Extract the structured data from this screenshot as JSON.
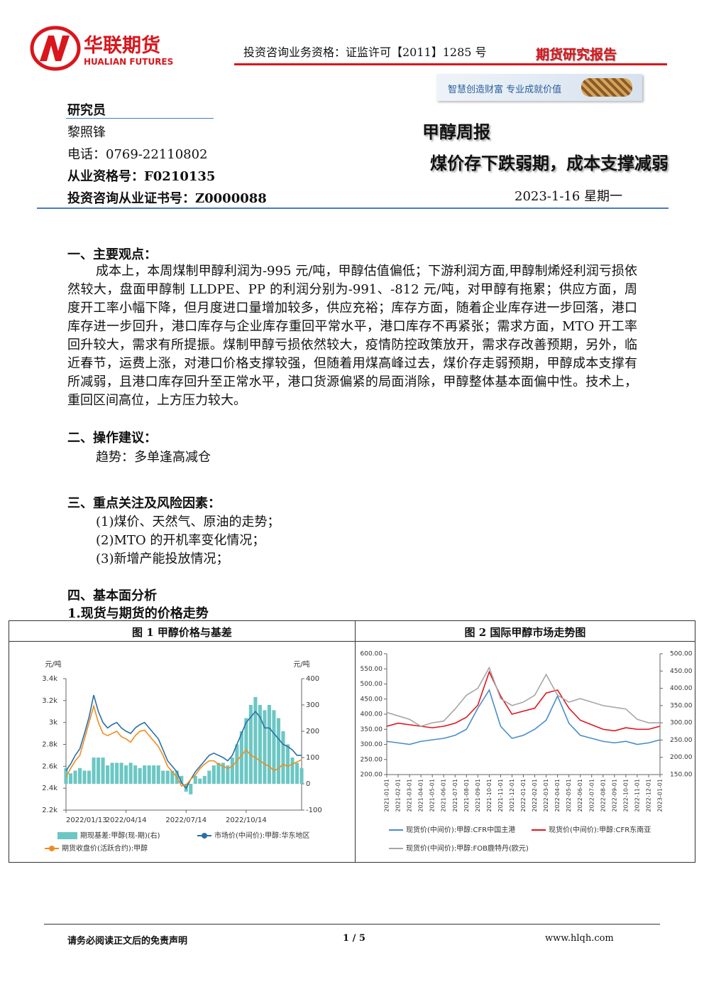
{
  "header": {
    "logo_cn": "华联期货",
    "logo_en": "HUALIAN FUTURES",
    "qualification": "投资咨询业务资格：证监许可【2011】1285 号",
    "report_type": "期货研究报告",
    "slogan": "智慧创造财富 专业成就价值"
  },
  "researcher": {
    "heading": "研究员",
    "name": "黎照锋",
    "phone": "电话：0769-22110802",
    "license": "从业资格号：F0210135",
    "consult_license": "投资咨询从业证书号：Z0000088"
  },
  "report": {
    "title": "甲醇周报",
    "subtitle": "煤价存下跌弱期，成本支撑减弱",
    "date": "2023-1-16 星期一"
  },
  "sections": [
    {
      "heading": "一、主要观点：",
      "paragraph": "成本上，本周煤制甲醇利润为-995 元/吨，甲醇估值偏低；下游利润方面,甲醇制烯烃利润亏损依然较大，盘面甲醇制 LLDPE、PP 的利润分别为-991、-812 元/吨，对甲醇有拖累；供应方面，周度开工率小幅下降，但月度进口量增加较多，供应充裕；库存方面，随着企业库存进一步回落，港口库存进一步回升，港口库存与企业库存重回平常水平，港口库存不再紧张；需求方面，MTO 开工率回升较大，需求有所提振。煤制甲醇亏损依然较大，疫情防控政策放开，需求存改善预期，另外，临近春节，运费上涨，对港口价格支撑较强，但随着用煤高峰过去，煤价存走弱预期，甲醇成本支撑有所减弱，且港口库存回升至正常水平，港口货源偏紧的局面消除，甲醇整体基本面偏中性。技术上，重回区间高位，上方压力较大。"
    },
    {
      "heading": "二、操作建议：",
      "items": [
        "趋势：多单逢高减仓"
      ]
    },
    {
      "heading": "三、重点关注及风险因素：",
      "items": [
        "(1)煤价、天然气、原油的走势；",
        "(2)MTO 的开机率变化情况；",
        "(3)新增产能投放情况；"
      ]
    },
    {
      "heading": "四、基本面分析",
      "subheading": "1.现货与期货的价格走势"
    }
  ],
  "chart_data": [
    {
      "type": "combo",
      "title": "图 1 甲醇价格与基差",
      "y_label": "元/吨",
      "y2_label": "元/吨",
      "categories": [
        "2022/01/13",
        null,
        null,
        null,
        null,
        null,
        null,
        null,
        null,
        null,
        null,
        null,
        null,
        "2022/04/14",
        null,
        null,
        null,
        null,
        null,
        null,
        null,
        null,
        null,
        null,
        null,
        null,
        "2022/07/14",
        null,
        null,
        null,
        null,
        null,
        null,
        null,
        null,
        null,
        null,
        null,
        null,
        "2022/10/14",
        null,
        null,
        null,
        null,
        null,
        null,
        null,
        null,
        null,
        null,
        null,
        null
      ],
      "ylim": [
        2200,
        3400
      ],
      "yticks": [
        {
          "value": 2200,
          "label": "2.2k"
        },
        {
          "value": 2400,
          "label": "2.4k"
        },
        {
          "value": 2600,
          "label": "2.6k"
        },
        {
          "value": 2800,
          "label": "2.8k"
        },
        {
          "value": 3000,
          "label": "3k"
        },
        {
          "value": 3200,
          "label": "3.2k"
        },
        {
          "value": 3400,
          "label": "3.4k"
        }
      ],
      "y2lim": [
        -100,
        400
      ],
      "y2ticks": [
        -100,
        0,
        100,
        200,
        300,
        400
      ],
      "grid": false,
      "series": [
        {
          "name": "期现基差:甲醇(现-期)(右)",
          "type": "bar",
          "axis": "y2",
          "color": "#6cc7c4",
          "values": [
            60,
            40,
            50,
            60,
            50,
            50,
            100,
            100,
            100,
            70,
            80,
            80,
            80,
            70,
            80,
            70,
            60,
            70,
            70,
            70,
            70,
            50,
            50,
            50,
            50,
            30,
            -30,
            -40,
            30,
            20,
            30,
            50,
            70,
            80,
            80,
            70,
            100,
            150,
            200,
            250,
            300,
            330,
            300,
            280,
            300,
            280,
            250,
            200,
            150,
            100,
            80,
            60
          ]
        },
        {
          "name": "市场价(中间价):甲醇:华东地区",
          "type": "line",
          "color": "#2a6fa8",
          "values": [
            2560,
            2620,
            2700,
            2760,
            2900,
            3050,
            3250,
            3100,
            3000,
            2950,
            2980,
            3000,
            2950,
            2920,
            2900,
            2950,
            2980,
            3000,
            2950,
            2900,
            2850,
            2750,
            2650,
            2600,
            2550,
            2450,
            2400,
            2480,
            2550,
            2600,
            2650,
            2700,
            2720,
            2700,
            2680,
            2650,
            2700,
            2800,
            2900,
            3000,
            3050,
            3100,
            3050,
            2950,
            2950,
            2900,
            2850,
            2800,
            2780,
            2750,
            2700,
            2700
          ]
        },
        {
          "name": "期货收盘价(活跃合约):甲醇",
          "type": "line",
          "color": "#f08c1e",
          "values": [
            2500,
            2580,
            2650,
            2700,
            2850,
            3000,
            3150,
            3000,
            2900,
            2880,
            2900,
            2920,
            2870,
            2850,
            2820,
            2880,
            2920,
            2930,
            2880,
            2830,
            2780,
            2700,
            2600,
            2550,
            2500,
            2420,
            2430,
            2480,
            2520,
            2580,
            2620,
            2650,
            2650,
            2620,
            2600,
            2580,
            2600,
            2650,
            2700,
            2750,
            2700,
            2680,
            2650,
            2620,
            2600,
            2560,
            2580,
            2620,
            2600,
            2620,
            2640,
            2660
          ]
        }
      ]
    },
    {
      "type": "line",
      "title": "图 2 国际甲醇市场走势图",
      "categories": [
        "2021-01-01",
        "2021-02-01",
        "2021-03-01",
        "2021-04-01",
        "2021-05-01",
        "2021-06-01",
        "2021-07-01",
        "2021-08-01",
        "2021-09-01",
        "2021-10-01",
        "2021-11-01",
        "2021-12-01",
        "2022-01-01",
        "2022-02-01",
        "2022-03-01",
        "2022-04-01",
        "2022-05-01",
        "2022-06-01",
        "2022-07-01",
        "2022-08-01",
        "2022-09-01",
        "2022-10-01",
        "2022-11-01",
        "2022-12-01",
        "2023-01-01"
      ],
      "ylim": [
        200,
        600
      ],
      "yticks": [
        {
          "value": 200,
          "label": "200.00"
        },
        {
          "value": 250,
          "label": "250.00"
        },
        {
          "value": 300,
          "label": "300.00"
        },
        {
          "value": 350,
          "label": "350.00"
        },
        {
          "value": 400,
          "label": "400.00"
        },
        {
          "value": 450,
          "label": "450.00"
        },
        {
          "value": 500,
          "label": "500.00"
        },
        {
          "value": 550,
          "label": "550.00"
        },
        {
          "value": 600,
          "label": "600.00"
        }
      ],
      "y2lim": [
        150,
        500
      ],
      "y2ticks": [
        {
          "value": 150,
          "label": "150.00"
        },
        {
          "value": 200,
          "label": "200.00"
        },
        {
          "value": 250,
          "label": "250.00"
        },
        {
          "value": 300,
          "label": "300.00"
        },
        {
          "value": 350,
          "label": "350.00"
        },
        {
          "value": 400,
          "label": "400.00"
        },
        {
          "value": 450,
          "label": "450.00"
        },
        {
          "value": 500,
          "label": "500.00"
        }
      ],
      "grid": false,
      "series": [
        {
          "name": "现货价(中间价):甲醇:CFR中国主港",
          "type": "line",
          "color": "#4a8cc9",
          "values": [
            310,
            305,
            300,
            310,
            315,
            320,
            330,
            350,
            420,
            480,
            360,
            320,
            330,
            350,
            380,
            460,
            370,
            330,
            320,
            310,
            305,
            310,
            300,
            305,
            315
          ]
        },
        {
          "name": "现货价(中间价):甲醇:CFR东南亚",
          "type": "line",
          "color": "#e0141e",
          "values": [
            360,
            370,
            365,
            360,
            355,
            360,
            370,
            390,
            430,
            540,
            460,
            400,
            410,
            420,
            470,
            480,
            420,
            380,
            365,
            350,
            345,
            355,
            350,
            350,
            360
          ]
        },
        {
          "name": "现货价(中间价):甲醇:FOB鹿特丹(欧元)",
          "type": "line",
          "axis": "y2",
          "color": "#a6a6a6",
          "values": [
            330,
            320,
            310,
            290,
            300,
            305,
            340,
            380,
            400,
            460,
            370,
            350,
            360,
            380,
            440,
            380,
            360,
            370,
            360,
            350,
            345,
            340,
            310,
            300,
            300
          ]
        }
      ]
    }
  ],
  "footer": {
    "disclaimer": "请务必阅读正文后的免责声明",
    "page": "1 / 5",
    "website": "www.hlqh.com"
  }
}
